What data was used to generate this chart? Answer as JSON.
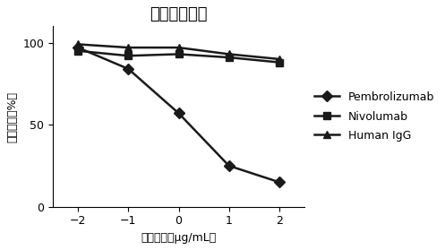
{
  "title": "竞争抑制实验",
  "xlabel": "抗体浓度（μg/mL）",
  "ylabel": "显色程度（%）",
  "x": [
    -2,
    -1,
    0,
    1,
    2
  ],
  "pembrolizumab": [
    97,
    84,
    57,
    25,
    15
  ],
  "nivolumab": [
    95,
    92,
    93,
    91,
    88
  ],
  "human_igg": [
    99,
    97,
    97,
    93,
    90
  ],
  "color": "#1a1a1a",
  "ylim": [
    0,
    110
  ],
  "yticks": [
    0,
    50,
    100
  ],
  "xticks": [
    -2,
    -1,
    0,
    1,
    2
  ],
  "legend_pembrolizumab": "Pembrolizumab",
  "legend_nivolumab": "Nivolumab",
  "legend_human_igg": "Human IgG",
  "title_fontsize": 13,
  "label_fontsize": 9,
  "tick_fontsize": 9,
  "legend_fontsize": 9,
  "linewidth": 1.8,
  "markersize": 6
}
